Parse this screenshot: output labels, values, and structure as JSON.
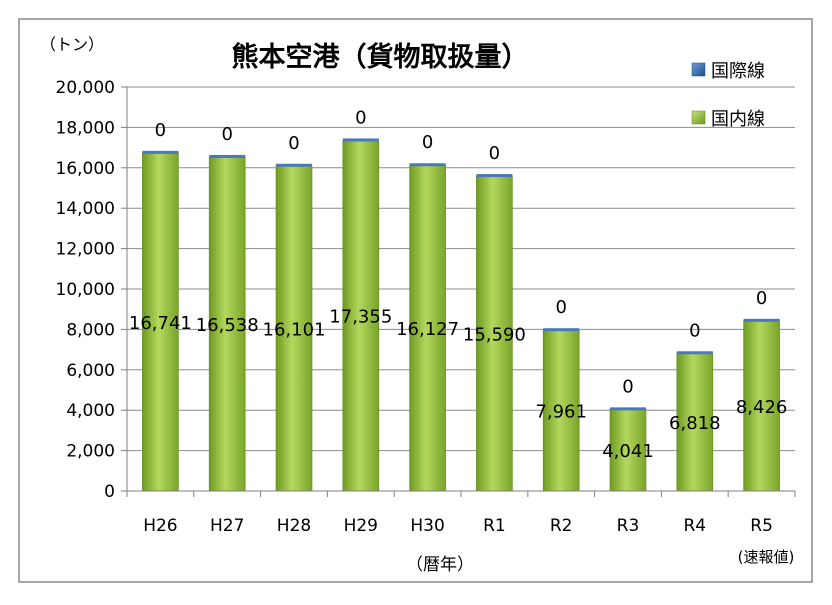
{
  "chart_data": {
    "type": "bar",
    "stacked": true,
    "title": "熊本空港（貨物取扱量）",
    "unit_label": "（トン）",
    "xlabel": "（暦年）",
    "categories": [
      "H26",
      "H27",
      "H28",
      "H29",
      "H30",
      "R1",
      "R2",
      "R3",
      "R4",
      "R5"
    ],
    "category_note": "(速報値)",
    "ylim": [
      0,
      20000
    ],
    "yticks": [
      "0",
      "2,000",
      "4,000",
      "6,000",
      "8,000",
      "10,000",
      "12,000",
      "14,000",
      "16,000",
      "18,000",
      "20,000"
    ],
    "grid": true,
    "legend_position": "top-right",
    "series": [
      {
        "name": "国際線",
        "color": "#2e5f9e",
        "values": [
          0,
          0,
          0,
          0,
          0,
          0,
          0,
          0,
          0,
          0
        ],
        "labels": [
          "0",
          "0",
          "0",
          "0",
          "0",
          "0",
          "0",
          "0",
          "0",
          "0"
        ]
      },
      {
        "name": "国内線",
        "color": "#8cb43a",
        "values": [
          16741,
          16538,
          16101,
          17355,
          16127,
          15590,
          7961,
          4041,
          6818,
          8426
        ],
        "labels": [
          "16,741",
          "16,538",
          "16,101",
          "17,355",
          "16,127",
          "15,590",
          "7,961",
          "4,041",
          "6,818",
          "8,426"
        ]
      }
    ]
  }
}
